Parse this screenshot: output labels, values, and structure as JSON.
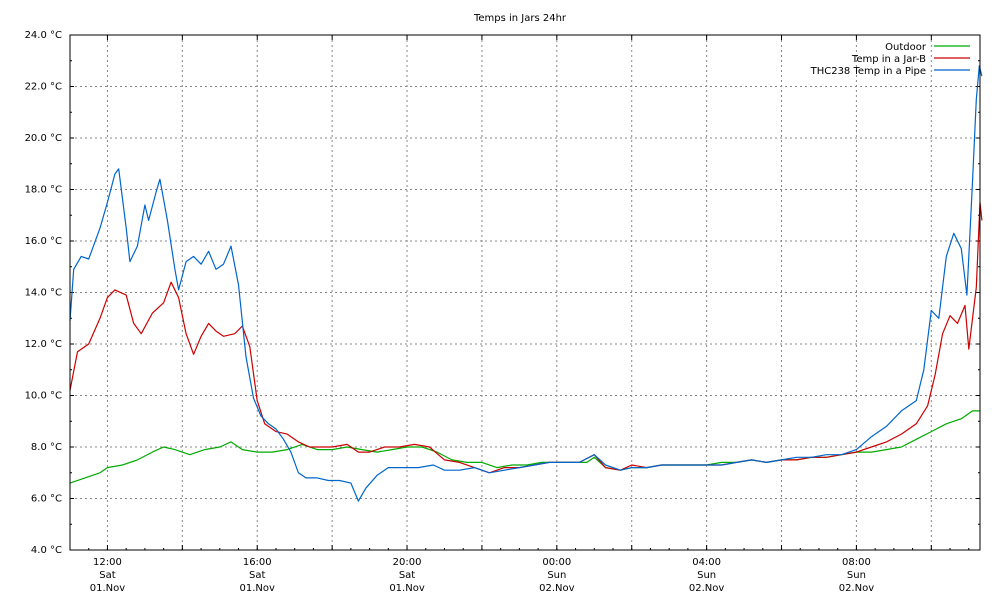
{
  "chart_data": {
    "type": "line",
    "title": "Temps in Jars 24hr",
    "ylim": [
      4.0,
      24.0
    ],
    "xlim": [
      11.0,
      35.3
    ],
    "grid": true,
    "legend_position": "top-right",
    "y_ticks": [
      {
        "value": 4.0,
        "label": "4.0 °C"
      },
      {
        "value": 6.0,
        "label": "6.0 °C"
      },
      {
        "value": 8.0,
        "label": "8.0 °C"
      },
      {
        "value": 10.0,
        "label": "10.0 °C"
      },
      {
        "value": 12.0,
        "label": "12.0 °C"
      },
      {
        "value": 14.0,
        "label": "14.0 °C"
      },
      {
        "value": 16.0,
        "label": "16.0 °C"
      },
      {
        "value": 18.0,
        "label": "18.0 °C"
      },
      {
        "value": 20.0,
        "label": "20.0 °C"
      },
      {
        "value": 22.0,
        "label": "22.0 °C"
      },
      {
        "value": 24.0,
        "label": "24.0 °C"
      }
    ],
    "x_ticks": [
      {
        "value": 12,
        "time": "12:00",
        "day": "Sat",
        "date": "01.Nov"
      },
      {
        "value": 16,
        "time": "16:00",
        "day": "Sat",
        "date": "01.Nov"
      },
      {
        "value": 20,
        "time": "20:00",
        "day": "Sat",
        "date": "01.Nov"
      },
      {
        "value": 24,
        "time": "00:00",
        "day": "Sun",
        "date": "02.Nov"
      },
      {
        "value": 28,
        "time": "04:00",
        "day": "Sun",
        "date": "02.Nov"
      },
      {
        "value": 32,
        "time": "08:00",
        "day": "Sun",
        "date": "02.Nov"
      }
    ],
    "series": [
      {
        "name": "Outdoor",
        "color": "#00aa00",
        "points": [
          [
            11.0,
            6.6
          ],
          [
            11.4,
            6.8
          ],
          [
            11.8,
            7.0
          ],
          [
            12.0,
            7.2
          ],
          [
            12.4,
            7.3
          ],
          [
            12.8,
            7.5
          ],
          [
            13.2,
            7.8
          ],
          [
            13.5,
            8.0
          ],
          [
            13.8,
            7.9
          ],
          [
            14.2,
            7.7
          ],
          [
            14.6,
            7.9
          ],
          [
            15.0,
            8.0
          ],
          [
            15.3,
            8.2
          ],
          [
            15.6,
            7.9
          ],
          [
            16.0,
            7.8
          ],
          [
            16.4,
            7.8
          ],
          [
            16.8,
            7.9
          ],
          [
            17.2,
            8.1
          ],
          [
            17.6,
            7.9
          ],
          [
            18.0,
            7.9
          ],
          [
            18.4,
            8.0
          ],
          [
            18.8,
            7.9
          ],
          [
            19.2,
            7.8
          ],
          [
            19.6,
            7.9
          ],
          [
            20.0,
            8.0
          ],
          [
            20.4,
            8.0
          ],
          [
            20.8,
            7.8
          ],
          [
            21.2,
            7.5
          ],
          [
            21.6,
            7.4
          ],
          [
            22.0,
            7.4
          ],
          [
            22.4,
            7.2
          ],
          [
            22.8,
            7.3
          ],
          [
            23.2,
            7.3
          ],
          [
            23.6,
            7.4
          ],
          [
            24.0,
            7.4
          ],
          [
            24.4,
            7.4
          ],
          [
            24.8,
            7.4
          ],
          [
            25.0,
            7.6
          ],
          [
            25.3,
            7.2
          ],
          [
            25.7,
            7.1
          ],
          [
            26.0,
            7.2
          ],
          [
            26.4,
            7.2
          ],
          [
            26.8,
            7.3
          ],
          [
            27.2,
            7.3
          ],
          [
            27.6,
            7.3
          ],
          [
            28.0,
            7.3
          ],
          [
            28.4,
            7.4
          ],
          [
            28.8,
            7.4
          ],
          [
            29.2,
            7.5
          ],
          [
            29.6,
            7.4
          ],
          [
            30.0,
            7.5
          ],
          [
            30.4,
            7.5
          ],
          [
            30.8,
            7.6
          ],
          [
            31.2,
            7.6
          ],
          [
            31.6,
            7.7
          ],
          [
            32.0,
            7.8
          ],
          [
            32.4,
            7.8
          ],
          [
            32.8,
            7.9
          ],
          [
            33.2,
            8.0
          ],
          [
            33.6,
            8.3
          ],
          [
            34.0,
            8.6
          ],
          [
            34.4,
            8.9
          ],
          [
            34.8,
            9.1
          ],
          [
            35.1,
            9.4
          ],
          [
            35.3,
            9.4
          ]
        ]
      },
      {
        "name": "Temp in a Jar-B",
        "color": "#cc0000",
        "points": [
          [
            11.0,
            10.2
          ],
          [
            11.2,
            11.7
          ],
          [
            11.5,
            12.0
          ],
          [
            11.8,
            13.0
          ],
          [
            12.0,
            13.8
          ],
          [
            12.2,
            14.1
          ],
          [
            12.5,
            13.9
          ],
          [
            12.7,
            12.8
          ],
          [
            12.9,
            12.4
          ],
          [
            13.2,
            13.2
          ],
          [
            13.5,
            13.6
          ],
          [
            13.7,
            14.4
          ],
          [
            13.9,
            13.8
          ],
          [
            14.1,
            12.4
          ],
          [
            14.3,
            11.6
          ],
          [
            14.5,
            12.3
          ],
          [
            14.7,
            12.8
          ],
          [
            14.9,
            12.5
          ],
          [
            15.1,
            12.3
          ],
          [
            15.4,
            12.4
          ],
          [
            15.6,
            12.7
          ],
          [
            15.8,
            11.9
          ],
          [
            16.0,
            9.8
          ],
          [
            16.2,
            8.9
          ],
          [
            16.5,
            8.6
          ],
          [
            16.8,
            8.5
          ],
          [
            17.1,
            8.2
          ],
          [
            17.4,
            8.0
          ],
          [
            17.7,
            8.0
          ],
          [
            18.0,
            8.0
          ],
          [
            18.4,
            8.1
          ],
          [
            18.7,
            7.8
          ],
          [
            19.0,
            7.8
          ],
          [
            19.4,
            8.0
          ],
          [
            19.8,
            8.0
          ],
          [
            20.2,
            8.1
          ],
          [
            20.6,
            8.0
          ],
          [
            21.0,
            7.5
          ],
          [
            21.4,
            7.4
          ],
          [
            21.8,
            7.2
          ],
          [
            22.2,
            7.0
          ],
          [
            22.6,
            7.2
          ],
          [
            23.0,
            7.2
          ],
          [
            23.4,
            7.3
          ],
          [
            23.8,
            7.4
          ],
          [
            24.2,
            7.4
          ],
          [
            24.6,
            7.4
          ],
          [
            25.0,
            7.7
          ],
          [
            25.3,
            7.2
          ],
          [
            25.7,
            7.1
          ],
          [
            26.0,
            7.3
          ],
          [
            26.4,
            7.2
          ],
          [
            26.8,
            7.3
          ],
          [
            27.2,
            7.3
          ],
          [
            27.6,
            7.3
          ],
          [
            28.0,
            7.3
          ],
          [
            28.4,
            7.3
          ],
          [
            28.8,
            7.4
          ],
          [
            29.2,
            7.5
          ],
          [
            29.6,
            7.4
          ],
          [
            30.0,
            7.5
          ],
          [
            30.4,
            7.5
          ],
          [
            30.8,
            7.6
          ],
          [
            31.2,
            7.6
          ],
          [
            31.6,
            7.7
          ],
          [
            32.0,
            7.8
          ],
          [
            32.4,
            8.0
          ],
          [
            32.8,
            8.2
          ],
          [
            33.2,
            8.5
          ],
          [
            33.6,
            8.9
          ],
          [
            33.9,
            9.6
          ],
          [
            34.1,
            10.8
          ],
          [
            34.3,
            12.4
          ],
          [
            34.5,
            13.1
          ],
          [
            34.7,
            12.8
          ],
          [
            34.9,
            13.5
          ],
          [
            35.0,
            11.8
          ],
          [
            35.2,
            14.2
          ],
          [
            35.3,
            17.5
          ],
          [
            35.35,
            16.8
          ]
        ]
      },
      {
        "name": "THC238 Temp in a Pipe",
        "color": "#0066cc",
        "points": [
          [
            11.0,
            12.9
          ],
          [
            11.1,
            14.9
          ],
          [
            11.3,
            15.4
          ],
          [
            11.5,
            15.3
          ],
          [
            11.8,
            16.5
          ],
          [
            12.0,
            17.5
          ],
          [
            12.2,
            18.6
          ],
          [
            12.3,
            18.8
          ],
          [
            12.5,
            16.5
          ],
          [
            12.6,
            15.2
          ],
          [
            12.8,
            15.8
          ],
          [
            13.0,
            17.4
          ],
          [
            13.1,
            16.8
          ],
          [
            13.3,
            17.9
          ],
          [
            13.4,
            18.4
          ],
          [
            13.6,
            16.8
          ],
          [
            13.8,
            14.9
          ],
          [
            13.9,
            14.1
          ],
          [
            14.1,
            15.2
          ],
          [
            14.3,
            15.4
          ],
          [
            14.5,
            15.1
          ],
          [
            14.7,
            15.6
          ],
          [
            14.9,
            14.9
          ],
          [
            15.1,
            15.1
          ],
          [
            15.3,
            15.8
          ],
          [
            15.5,
            14.3
          ],
          [
            15.7,
            11.5
          ],
          [
            15.9,
            9.9
          ],
          [
            16.1,
            9.2
          ],
          [
            16.3,
            8.9
          ],
          [
            16.5,
            8.7
          ],
          [
            16.7,
            8.3
          ],
          [
            16.9,
            7.8
          ],
          [
            17.1,
            7.0
          ],
          [
            17.3,
            6.8
          ],
          [
            17.6,
            6.8
          ],
          [
            17.9,
            6.7
          ],
          [
            18.2,
            6.7
          ],
          [
            18.5,
            6.6
          ],
          [
            18.7,
            5.9
          ],
          [
            18.9,
            6.4
          ],
          [
            19.2,
            6.9
          ],
          [
            19.5,
            7.2
          ],
          [
            19.9,
            7.2
          ],
          [
            20.3,
            7.2
          ],
          [
            20.7,
            7.3
          ],
          [
            21.0,
            7.1
          ],
          [
            21.4,
            7.1
          ],
          [
            21.8,
            7.2
          ],
          [
            22.2,
            7.0
          ],
          [
            22.6,
            7.1
          ],
          [
            23.0,
            7.2
          ],
          [
            23.4,
            7.3
          ],
          [
            23.8,
            7.4
          ],
          [
            24.2,
            7.4
          ],
          [
            24.6,
            7.4
          ],
          [
            25.0,
            7.7
          ],
          [
            25.3,
            7.3
          ],
          [
            25.7,
            7.1
          ],
          [
            26.0,
            7.2
          ],
          [
            26.4,
            7.2
          ],
          [
            26.8,
            7.3
          ],
          [
            27.2,
            7.3
          ],
          [
            27.6,
            7.3
          ],
          [
            28.0,
            7.3
          ],
          [
            28.4,
            7.3
          ],
          [
            28.8,
            7.4
          ],
          [
            29.2,
            7.5
          ],
          [
            29.6,
            7.4
          ],
          [
            30.0,
            7.5
          ],
          [
            30.4,
            7.6
          ],
          [
            30.8,
            7.6
          ],
          [
            31.2,
            7.7
          ],
          [
            31.6,
            7.7
          ],
          [
            32.0,
            7.9
          ],
          [
            32.4,
            8.4
          ],
          [
            32.8,
            8.8
          ],
          [
            33.2,
            9.4
          ],
          [
            33.6,
            9.8
          ],
          [
            33.8,
            11.0
          ],
          [
            34.0,
            13.3
          ],
          [
            34.2,
            13.0
          ],
          [
            34.4,
            15.4
          ],
          [
            34.6,
            16.3
          ],
          [
            34.8,
            15.7
          ],
          [
            34.95,
            13.9
          ],
          [
            35.1,
            18.3
          ],
          [
            35.2,
            21.5
          ],
          [
            35.28,
            22.8
          ],
          [
            35.35,
            22.4
          ]
        ]
      }
    ]
  }
}
